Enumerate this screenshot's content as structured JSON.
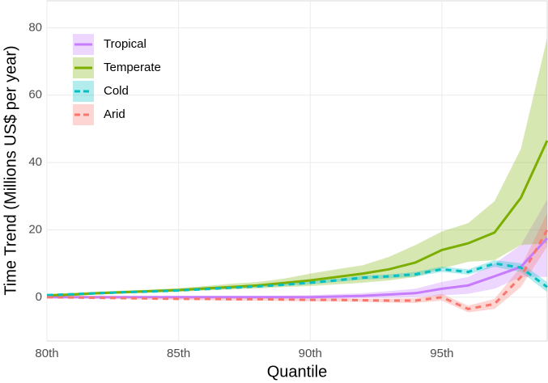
{
  "chart_data": {
    "type": "line",
    "x_label": "Quantile",
    "y_label": "Time Trend (Millions US$ per year)",
    "x": [
      80,
      81,
      82,
      83,
      84,
      85,
      86,
      87,
      88,
      89,
      90,
      91,
      92,
      93,
      94,
      95,
      96,
      97,
      98,
      99
    ],
    "xlim": [
      80,
      99
    ],
    "ylim": [
      -13,
      88
    ],
    "xticks": [
      {
        "value": 80,
        "label": "80th"
      },
      {
        "value": 85,
        "label": "85th"
      },
      {
        "value": 90,
        "label": "90th"
      },
      {
        "value": 95,
        "label": "95th"
      }
    ],
    "yticks": [
      0,
      20,
      40,
      60,
      80
    ],
    "grid": true,
    "legend": "top-left",
    "series": [
      {
        "name": "Tropical",
        "color": "#c77cff",
        "dash": false,
        "values": [
          0,
          0,
          0,
          0,
          0,
          0,
          0,
          0,
          0,
          0,
          0,
          0.2,
          0.4,
          0.8,
          1.2,
          2.5,
          3.5,
          6.2,
          9,
          17.5
        ],
        "lower": [
          -0.3,
          -0.3,
          -0.3,
          -0.3,
          -0.3,
          -0.4,
          -0.4,
          -0.4,
          -0.4,
          -0.4,
          -0.5,
          -0.4,
          -0.3,
          -0.2,
          0,
          0.5,
          1,
          2.5,
          6,
          6
        ],
        "upper": [
          0.3,
          0.3,
          0.3,
          0.3,
          0.3,
          0.4,
          0.4,
          0.4,
          0.4,
          0.5,
          0.6,
          0.9,
          1.2,
          1.8,
          2.5,
          4.5,
          6,
          10,
          15.5,
          29
        ]
      },
      {
        "name": "Temperate",
        "color": "#7cae00",
        "dash": false,
        "values": [
          0.5,
          0.8,
          1.2,
          1.5,
          1.8,
          2.1,
          2.6,
          3,
          3.5,
          4.2,
          5,
          6,
          7,
          8.3,
          10.3,
          14,
          16,
          19.2,
          29.5,
          46.5
        ],
        "lower": [
          0.1,
          0.4,
          0.8,
          1.1,
          1.4,
          1.6,
          2,
          2.3,
          2.6,
          3,
          3.3,
          3.8,
          4.3,
          5,
          6,
          8.5,
          10.5,
          11,
          15.5,
          16
        ],
        "upper": [
          1,
          1.3,
          1.7,
          2,
          2.3,
          2.7,
          3.3,
          4,
          4.5,
          5.5,
          7,
          8.3,
          9.5,
          12,
          15.5,
          19.5,
          22,
          28.5,
          44,
          77
        ]
      },
      {
        "name": "Cold",
        "color": "#00bfc4",
        "dash": true,
        "values": [
          0.6,
          0.9,
          1.2,
          1.5,
          1.7,
          2,
          2.4,
          2.8,
          3.2,
          3.7,
          4.3,
          5,
          5.8,
          6.2,
          6.8,
          8.3,
          7.5,
          10,
          8.8,
          3
        ],
        "lower": [
          0.4,
          0.7,
          1,
          1.3,
          1.5,
          1.8,
          2.1,
          2.5,
          2.9,
          3.3,
          3.8,
          4.5,
          5.2,
          5.6,
          6.1,
          7.5,
          6.7,
          9,
          7.5,
          1.5
        ],
        "upper": [
          0.8,
          1.1,
          1.4,
          1.7,
          1.9,
          2.2,
          2.7,
          3.1,
          3.5,
          4.1,
          4.8,
          5.5,
          6.4,
          6.8,
          7.5,
          9.1,
          8.3,
          11,
          10.1,
          4.5
        ]
      },
      {
        "name": "Arid",
        "color": "#f8766d",
        "dash": true,
        "values": [
          0,
          -0.1,
          -0.2,
          -0.3,
          -0.4,
          -0.5,
          -0.5,
          -0.6,
          -0.6,
          -0.7,
          -0.8,
          -0.8,
          -0.9,
          -1,
          -1,
          0,
          -3.5,
          -2,
          6,
          20
        ],
        "lower": [
          -0.3,
          -0.4,
          -0.5,
          -0.6,
          -0.7,
          -0.8,
          -0.9,
          -1,
          -1,
          -1.1,
          -1.2,
          -1.3,
          -1.4,
          -1.6,
          -1.7,
          -1,
          -4.5,
          -3.5,
          3,
          15
        ],
        "upper": [
          0.3,
          0.2,
          0.1,
          0,
          -0.1,
          -0.2,
          -0.1,
          -0.2,
          -0.2,
          -0.3,
          -0.4,
          -0.3,
          -0.4,
          -0.4,
          -0.3,
          1,
          -2.5,
          -0.5,
          9,
          25
        ]
      }
    ]
  }
}
